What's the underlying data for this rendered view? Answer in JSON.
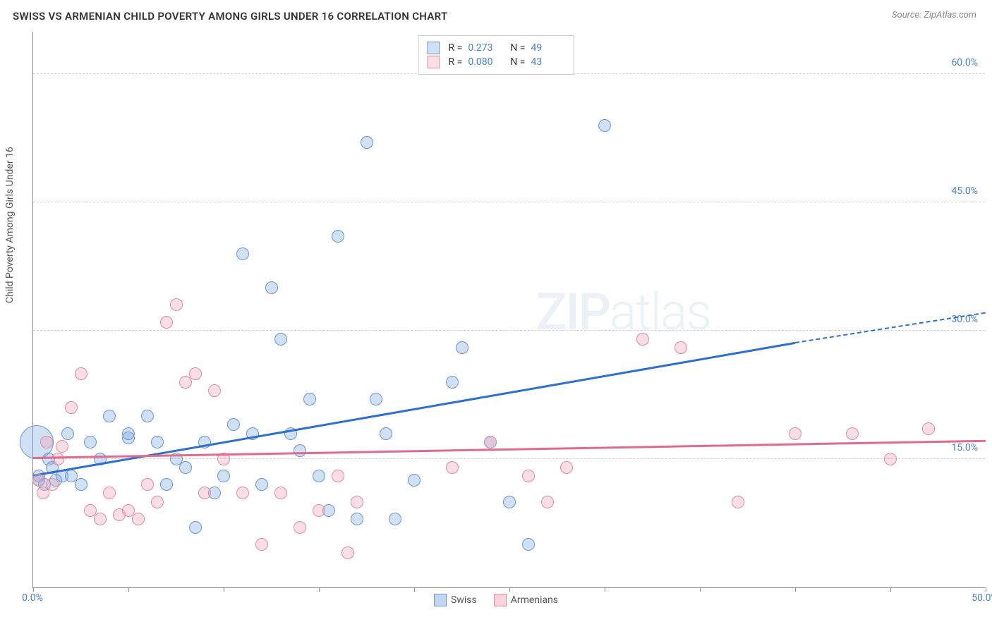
{
  "title": "SWISS VS ARMENIAN CHILD POVERTY AMONG GIRLS UNDER 16 CORRELATION CHART",
  "source": "Source: ZipAtlas.com",
  "y_axis_label": "Child Poverty Among Girls Under 16",
  "watermark_left": "ZIP",
  "watermark_right": "atlas",
  "chart": {
    "type": "scatter",
    "xlim": [
      0,
      50
    ],
    "ylim": [
      0,
      65
    ],
    "x_ticks": [
      0,
      5,
      10,
      15,
      20,
      25,
      30,
      35,
      40,
      45,
      50
    ],
    "x_tick_labels": {
      "0": "0.0%",
      "50": "50.0%"
    },
    "y_grid": [
      15,
      30,
      45,
      60
    ],
    "y_tick_labels": [
      "15.0%",
      "30.0%",
      "45.0%",
      "60.0%"
    ],
    "background_color": "#ffffff",
    "grid_color": "#d0d0d0",
    "axis_color": "#888888",
    "tick_label_color": "#4a7fd8",
    "point_radius": 9,
    "point_stroke_width": 1.2,
    "series": [
      {
        "name": "Swiss",
        "fill": "rgba(120,165,225,0.35)",
        "stroke": "#6a94d6",
        "r_label": "R =",
        "r_value": "0.273",
        "n_label": "N =",
        "n_value": "49",
        "trend": {
          "x1": 0,
          "y1": 13,
          "x2": 40,
          "y2": 28.5,
          "dash_x2": 50,
          "dash_y2": 32,
          "color": "#2f6fd0",
          "width": 2.5
        },
        "points": [
          [
            0.2,
            17,
            24
          ],
          [
            0.3,
            13
          ],
          [
            0.3,
            12.5
          ],
          [
            0.6,
            12
          ],
          [
            0.8,
            15
          ],
          [
            1,
            14
          ],
          [
            1.2,
            12.5
          ],
          [
            1.5,
            13
          ],
          [
            1.8,
            18
          ],
          [
            2,
            13
          ],
          [
            2.5,
            12
          ],
          [
            3,
            17
          ],
          [
            3.5,
            15
          ],
          [
            4,
            20
          ],
          [
            5,
            17.5
          ],
          [
            5,
            18
          ],
          [
            6,
            20
          ],
          [
            6.5,
            17
          ],
          [
            7,
            12
          ],
          [
            7.5,
            15
          ],
          [
            8,
            14
          ],
          [
            8.5,
            7
          ],
          [
            9,
            17
          ],
          [
            9.5,
            11
          ],
          [
            10,
            13
          ],
          [
            10.5,
            19
          ],
          [
            11,
            39
          ],
          [
            11.5,
            18
          ],
          [
            12,
            12
          ],
          [
            12.5,
            35
          ],
          [
            13,
            29
          ],
          [
            13.5,
            18
          ],
          [
            14,
            16
          ],
          [
            14.5,
            22
          ],
          [
            15,
            13
          ],
          [
            15.5,
            9
          ],
          [
            16,
            41
          ],
          [
            17,
            8
          ],
          [
            17.5,
            52
          ],
          [
            18,
            22
          ],
          [
            18.5,
            18
          ],
          [
            19,
            8
          ],
          [
            20,
            12.5
          ],
          [
            22,
            24
          ],
          [
            22.5,
            28
          ],
          [
            24,
            17
          ],
          [
            25,
            10
          ],
          [
            26,
            5
          ],
          [
            30,
            54
          ]
        ]
      },
      {
        "name": "Armenians",
        "fill": "rgba(240,160,180,0.35)",
        "stroke": "#e28ba0",
        "r_label": "R =",
        "r_value": "0.080",
        "n_label": "N =",
        "n_value": "43",
        "trend": {
          "x1": 0,
          "y1": 15,
          "x2": 50,
          "y2": 17,
          "color": "#e26a8c",
          "width": 2.5
        },
        "points": [
          [
            0.3,
            12.5
          ],
          [
            0.5,
            11
          ],
          [
            0.7,
            17
          ],
          [
            1,
            12
          ],
          [
            1.3,
            15
          ],
          [
            1.5,
            16.5
          ],
          [
            2,
            21
          ],
          [
            2.5,
            25
          ],
          [
            3,
            9
          ],
          [
            3.5,
            8
          ],
          [
            4,
            11
          ],
          [
            4.5,
            8.5
          ],
          [
            5,
            9
          ],
          [
            5.5,
            8
          ],
          [
            6,
            12
          ],
          [
            6.5,
            10
          ],
          [
            7,
            31
          ],
          [
            7.5,
            33
          ],
          [
            8,
            24
          ],
          [
            8.5,
            25
          ],
          [
            9,
            11
          ],
          [
            9.5,
            23
          ],
          [
            10,
            15
          ],
          [
            11,
            11
          ],
          [
            12,
            5
          ],
          [
            13,
            11
          ],
          [
            14,
            7
          ],
          [
            15,
            9
          ],
          [
            16,
            13
          ],
          [
            16.5,
            4
          ],
          [
            17,
            10
          ],
          [
            22,
            14
          ],
          [
            24,
            17
          ],
          [
            26,
            13
          ],
          [
            27,
            10
          ],
          [
            28,
            14
          ],
          [
            32,
            29
          ],
          [
            34,
            28
          ],
          [
            37,
            10
          ],
          [
            40,
            18
          ],
          [
            43,
            18
          ],
          [
            45,
            15
          ],
          [
            47,
            18.5
          ]
        ]
      }
    ]
  },
  "legend_bottom": [
    {
      "label": "Swiss",
      "fill": "rgba(120,165,225,0.45)",
      "stroke": "#6a94d6"
    },
    {
      "label": "Armenians",
      "fill": "rgba(240,160,180,0.45)",
      "stroke": "#e28ba0"
    }
  ]
}
